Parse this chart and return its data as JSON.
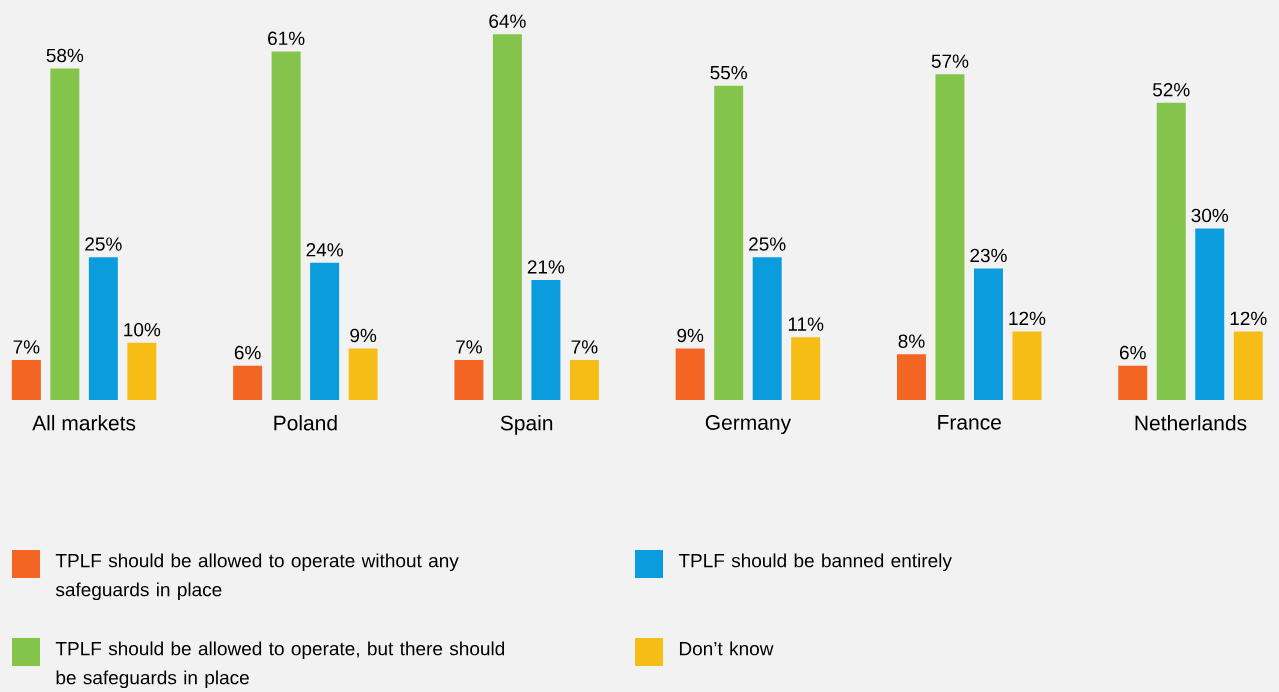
{
  "chart_data": {
    "type": "bar",
    "categories": [
      "All markets",
      "Poland",
      "Spain",
      "Germany",
      "France",
      "Netherlands"
    ],
    "series": [
      {
        "name": "TPLF should be allowed to operate without any safeguards in place",
        "color": "#f26522",
        "values": [
          7,
          6,
          7,
          9,
          8,
          6
        ],
        "value_labels": [
          "7%",
          "6%",
          "7%",
          "9%",
          "8%",
          "6%"
        ]
      },
      {
        "name": "TPLF should be allowed to operate, but there should be safeguards in place",
        "color": "#84c44a",
        "values": [
          58,
          61,
          64,
          55,
          57,
          52
        ],
        "value_labels": [
          "58%",
          "61%",
          "64%",
          "55%",
          "57%",
          "52%"
        ]
      },
      {
        "name": "TPLF should be banned entirely",
        "color": "#0a9cdc",
        "values": [
          25,
          24,
          21,
          25,
          23,
          30
        ],
        "value_labels": [
          "25%",
          "24%",
          "21%",
          "25%",
          "23%",
          "30%"
        ]
      },
      {
        "name": "Don’t know",
        "color": "#f6bd17",
        "values": [
          10,
          9,
          7,
          11,
          12,
          12
        ],
        "value_labels": [
          "10%",
          "9%",
          "7%",
          "11%",
          "12%",
          "12%"
        ]
      }
    ],
    "legend": "bottom"
  }
}
